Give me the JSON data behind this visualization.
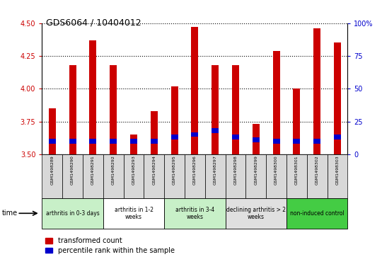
{
  "title": "GDS6064 / 10404012",
  "samples": [
    "GSM1498289",
    "GSM1498290",
    "GSM1498291",
    "GSM1498292",
    "GSM1498293",
    "GSM1498294",
    "GSM1498295",
    "GSM1498296",
    "GSM1498297",
    "GSM1498298",
    "GSM1498299",
    "GSM1498300",
    "GSM1498301",
    "GSM1498302",
    "GSM1498303"
  ],
  "red_values": [
    3.85,
    4.18,
    4.37,
    4.18,
    3.65,
    3.83,
    4.02,
    4.47,
    4.18,
    4.18,
    3.73,
    4.29,
    4.0,
    4.46,
    4.35
  ],
  "blue_pct": [
    10,
    10,
    10,
    10,
    10,
    10,
    13,
    15,
    18,
    13,
    11,
    10,
    10,
    10,
    13
  ],
  "ylim_left": [
    3.5,
    4.5
  ],
  "yticks_left": [
    3.5,
    3.75,
    4.0,
    4.25,
    4.5
  ],
  "ylim_right": [
    0,
    100
  ],
  "yticks_right": [
    0,
    25,
    50,
    75,
    100
  ],
  "bar_color_red": "#cc0000",
  "bar_color_blue": "#0000cc",
  "groups": [
    {
      "label": "arthritis in 0-3 days",
      "start": 0,
      "end": 3,
      "color": "#c8f0c8"
    },
    {
      "label": "arthritis in 1-2\nweeks",
      "start": 3,
      "end": 6,
      "color": "#ffffff"
    },
    {
      "label": "arthritis in 3-4\nweeks",
      "start": 6,
      "end": 9,
      "color": "#c8f0c8"
    },
    {
      "label": "declining arthritis > 2\nweeks",
      "start": 9,
      "end": 12,
      "color": "#e0e0e0"
    },
    {
      "label": "non-induced control",
      "start": 12,
      "end": 15,
      "color": "#44cc44"
    }
  ],
  "legend_red": "transformed count",
  "legend_blue": "percentile rank within the sample",
  "tick_color_left": "#cc0000",
  "tick_color_right": "#0000cc",
  "bar_width": 0.35
}
